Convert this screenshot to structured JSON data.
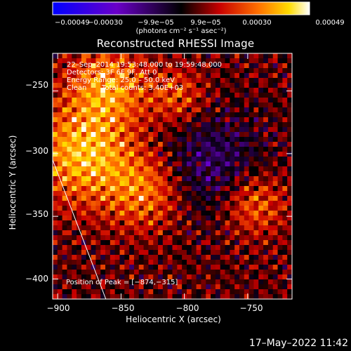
{
  "chart_data": {
    "type": "heatmap",
    "title": "Reconstructed RHESSI Image",
    "xlabel": "Heliocentric X (arcsec)",
    "ylabel": "Heliocentric Y (arcsec)",
    "xlim": [
      -904,
      -715
    ],
    "ylim": [
      -416,
      -220
    ],
    "x_ticks": [
      -900,
      -850,
      -800,
      -750
    ],
    "x_tick_labels": [
      "−900",
      "−850",
      "−800",
      "−750"
    ],
    "y_ticks": [
      -250,
      -300,
      -350,
      -400
    ],
    "y_tick_labels": [
      "−250",
      "−300",
      "−350",
      "−400"
    ],
    "colorbar": {
      "tick_labels": [
        "−0.00049",
        "−0.00030",
        "−9.9e−05",
        "9.9e−05",
        "0.00030",
        "0.00049"
      ],
      "unit": "(photons cm⁻² s⁻¹ asec⁻²)",
      "range": [
        -0.00049,
        0.00049
      ]
    },
    "annotations": {
      "time_range": "22–Sep–2014 19:53:48.000 to 19:59:48.000",
      "detectors": "Detectors: 3F 6F 9F, Att 0",
      "energy_range": "Energy Range: 25.0 – 50.0 keV",
      "method": "Clean",
      "total_counts": "Total counts: 3.40E+03",
      "peak_position": "Position of Peak = [−874,−315]"
    },
    "limb_line": [
      [
        -904,
        -305
      ],
      [
        -862,
        -416
      ]
    ]
  },
  "footer": {
    "timestamp": "17–May–2022 11:42"
  },
  "colors": {
    "background": "#000000",
    "axes": "#ffffff"
  }
}
